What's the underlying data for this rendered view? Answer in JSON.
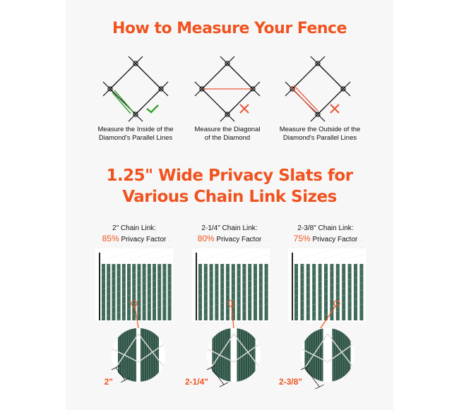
{
  "title": "How to Measure Your Fence",
  "measure_methods": [
    {
      "caption_line1": "Measure the Inside of the",
      "caption_line2": "Diamond's Parallel Lines",
      "verdict": "check-icon",
      "color": "#3aa635"
    },
    {
      "caption_line1": "Measure the Diagonal",
      "caption_line2": "of the Diamond",
      "verdict": "x-icon",
      "color": "#e8583a"
    },
    {
      "caption_line1": "Measure the Outside of the",
      "caption_line2": "Diamond's Parallel Lines",
      "verdict": "x-icon",
      "color": "#e8583a"
    }
  ],
  "subtitle_line1": "1.25\" Wide Privacy Slats for",
  "subtitle_line2": "Various Chain Link Sizes",
  "sizes": [
    {
      "label": "2\" Chain Link:",
      "percent": "85%",
      "factor": "Privacy Factor",
      "dimension": "2\""
    },
    {
      "label": "2-1/4\" Chain Link:",
      "percent": "80%",
      "factor": "Privacy Factor",
      "dimension": "2-1/4\""
    },
    {
      "label": "2-3/8\" Chain Link:",
      "percent": "75%",
      "factor": "Privacy Factor",
      "dimension": "2-3/8\""
    }
  ],
  "colors": {
    "accent": "#f0531f",
    "slat": "#3f6b58",
    "slat_dark": "#2d5244"
  }
}
